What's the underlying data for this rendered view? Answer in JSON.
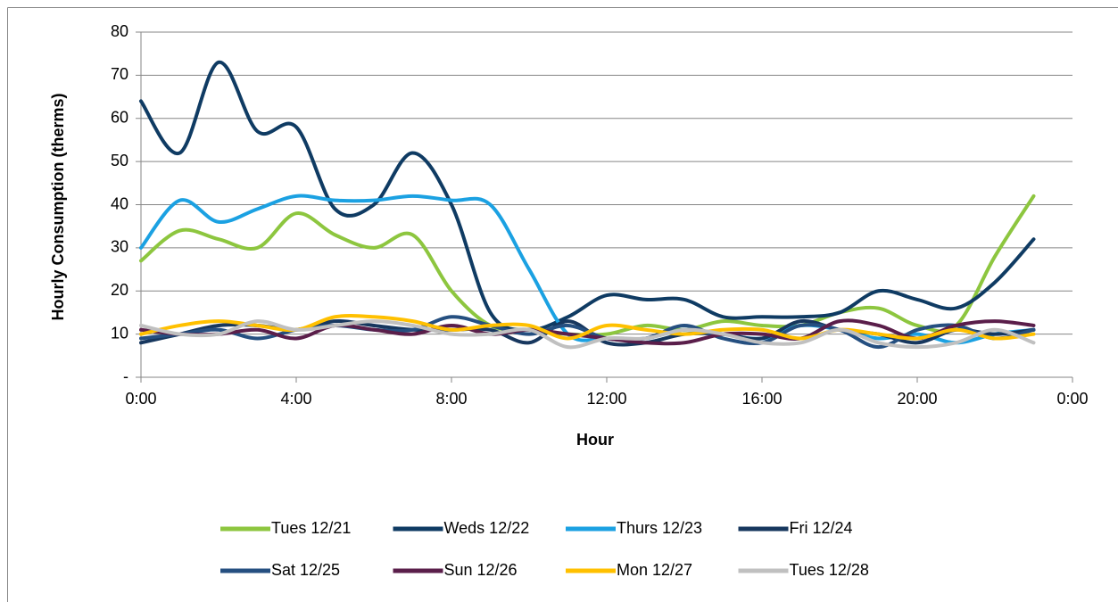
{
  "chart_data": {
    "type": "line",
    "y_label": "Hourly Consumption (therms)",
    "x_label": "Hour",
    "x": [
      0,
      1,
      2,
      3,
      4,
      5,
      6,
      7,
      8,
      9,
      10,
      11,
      12,
      13,
      14,
      15,
      16,
      17,
      18,
      19,
      20,
      21,
      22,
      23
    ],
    "xlim": [
      0,
      24
    ],
    "xticks": [
      {
        "value": 0,
        "label": "0:00"
      },
      {
        "value": 4,
        "label": "4:00"
      },
      {
        "value": 8,
        "label": "8:00"
      },
      {
        "value": 12,
        "label": "12:00"
      },
      {
        "value": 16,
        "label": "16:00"
      },
      {
        "value": 20,
        "label": "20:00"
      },
      {
        "value": 24,
        "label": "0:00"
      }
    ],
    "ylim": [
      0,
      80
    ],
    "yticks": [
      {
        "value": 0,
        "label": "-"
      },
      10,
      20,
      30,
      40,
      50,
      60,
      70,
      80
    ],
    "grid": true,
    "smooth": true,
    "legend": "bottom",
    "series": [
      {
        "name": "Tues 12/21",
        "color": "#8dc63f",
        "values": [
          27,
          34,
          32,
          30,
          38,
          33,
          30,
          33,
          20,
          12,
          11,
          10,
          10,
          12,
          11,
          13,
          12,
          12,
          15,
          16,
          12,
          12,
          28,
          42
        ]
      },
      {
        "name": "Weds 12/22",
        "color": "#0f3b63",
        "values": [
          64,
          52,
          73,
          57,
          58,
          39,
          40,
          52,
          40,
          15,
          11,
          14,
          19,
          18,
          18,
          14,
          14,
          14,
          15,
          20,
          18,
          16,
          22,
          32
        ]
      },
      {
        "name": "Thurs 12/23",
        "color": "#1ba1e2",
        "values": [
          30,
          41,
          36,
          39,
          42,
          41,
          41,
          42,
          41,
          40,
          25,
          10,
          9,
          9,
          11,
          10,
          9,
          12,
          11,
          9,
          10,
          8,
          10,
          11
        ]
      },
      {
        "name": "Fri 12/24",
        "color": "#17375e",
        "values": [
          8,
          10,
          12,
          12,
          11,
          13,
          12,
          11,
          11,
          11,
          8,
          13,
          8,
          8,
          10,
          10,
          9,
          13,
          11,
          10,
          8,
          11,
          10,
          11
        ]
      },
      {
        "name": "Sat 12/25",
        "color": "#254f80",
        "values": [
          9,
          10,
          11,
          9,
          11,
          12,
          11,
          11,
          14,
          12,
          10,
          12,
          9,
          9,
          12,
          9,
          8,
          12,
          11,
          7,
          11,
          12,
          9,
          11
        ]
      },
      {
        "name": "Sun 12/26",
        "color": "#5a1e4a",
        "values": [
          11,
          10,
          10,
          11,
          9,
          12,
          11,
          10,
          12,
          10,
          11,
          10,
          9,
          8,
          8,
          10,
          10,
          9,
          13,
          12,
          9,
          12,
          13,
          12
        ]
      },
      {
        "name": "Mon 12/27",
        "color": "#ffc000",
        "values": [
          10,
          12,
          13,
          12,
          11,
          14,
          14,
          13,
          11,
          12,
          12,
          9,
          12,
          11,
          10,
          11,
          11,
          9,
          11,
          10,
          9,
          11,
          9,
          10
        ]
      },
      {
        "name": "Tues 12/28",
        "color": "#c0c0c0",
        "values": [
          12,
          10,
          10,
          13,
          11,
          12,
          13,
          12,
          10,
          10,
          11,
          7,
          9,
          9,
          11,
          10,
          8,
          8,
          11,
          8,
          7,
          8,
          11,
          8
        ]
      }
    ]
  }
}
